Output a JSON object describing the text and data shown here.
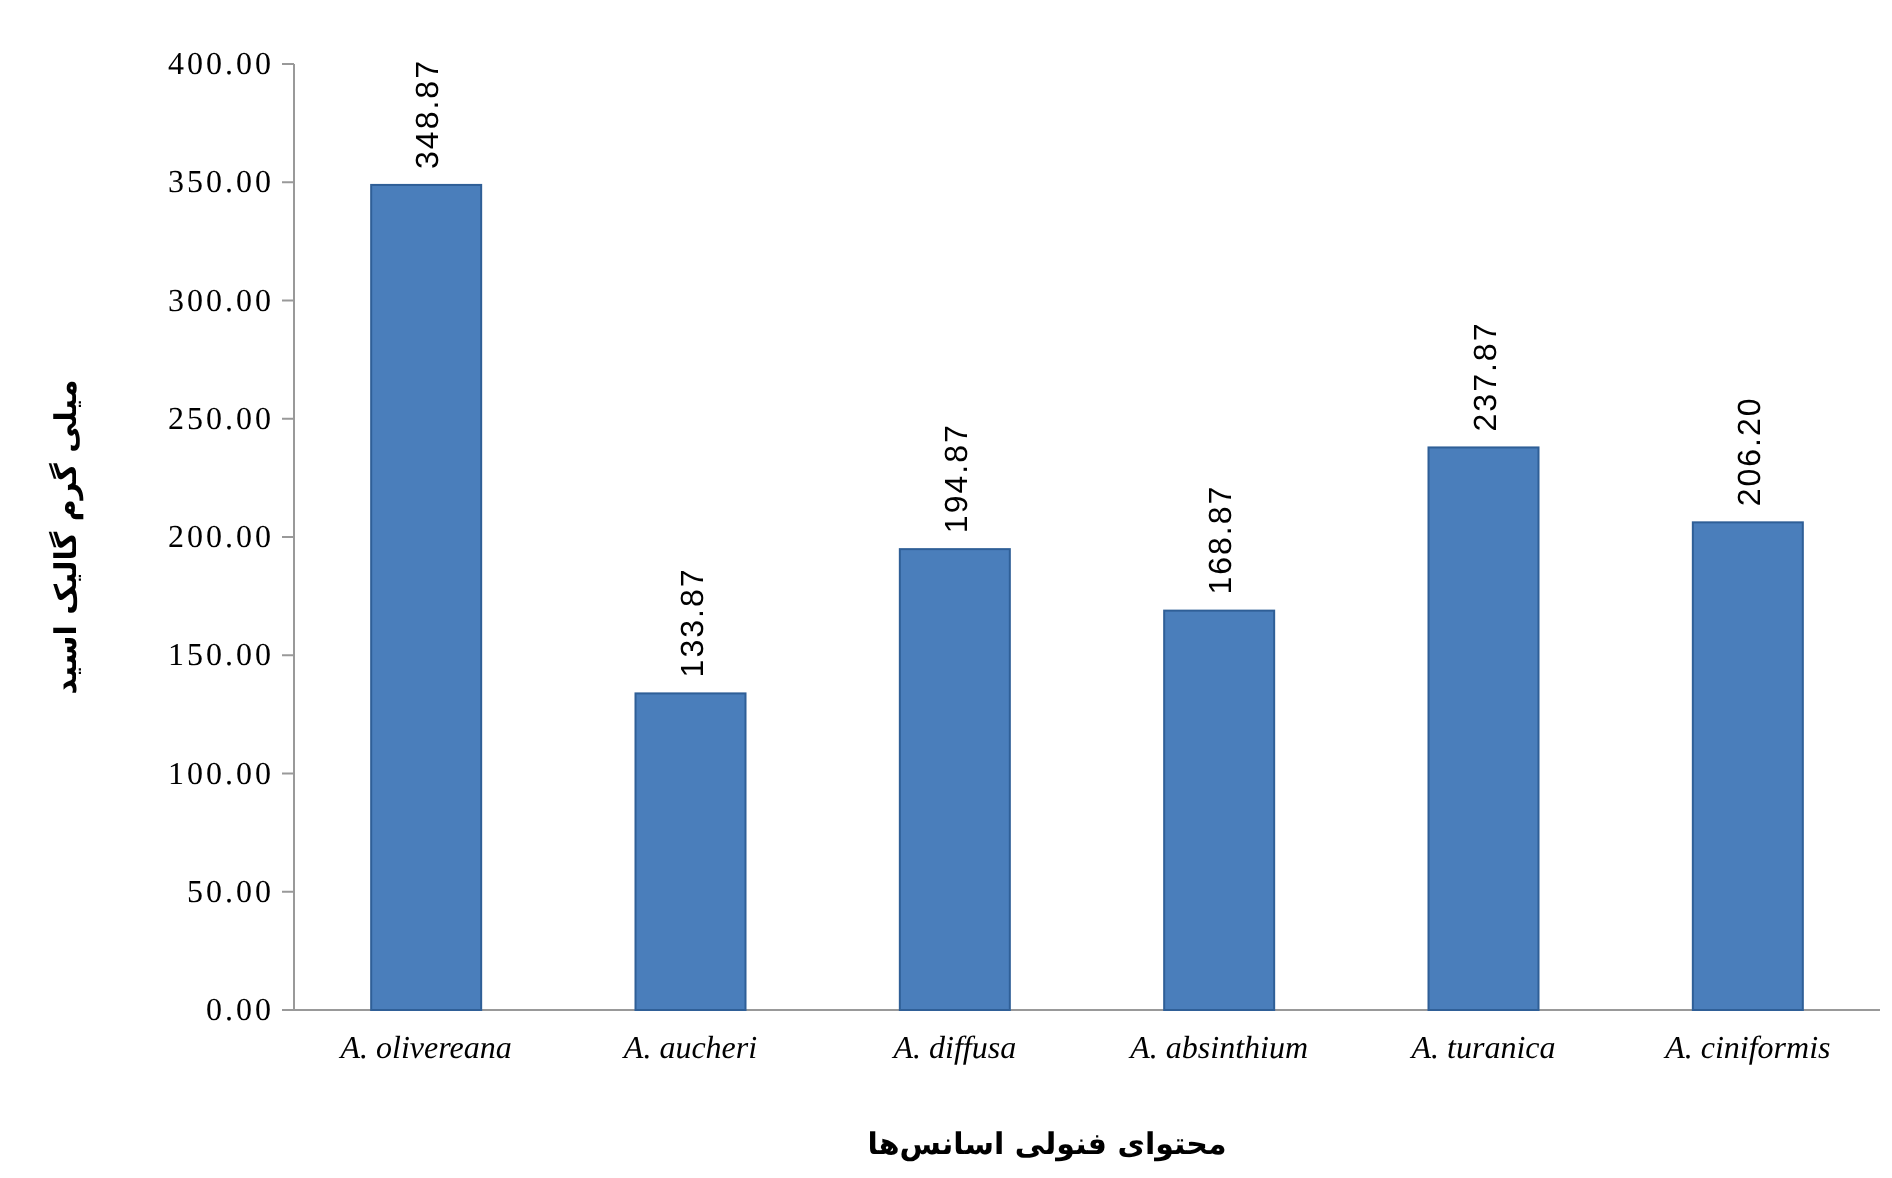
{
  "chart_data": {
    "type": "bar",
    "xlabel": "محتوای فنولی اسانس‌ها",
    "ylabel": "میلی گرم گالیک اسید",
    "categories": [
      "A. olivereana",
      "A. aucheri",
      "A. diffusa",
      "A. absinthium",
      "A. turanica",
      "A. ciniformis"
    ],
    "values": [
      348.87,
      133.87,
      194.87,
      168.87,
      237.87,
      206.2
    ],
    "value_labels": [
      "348.87",
      "133.87",
      "194.87",
      "168.87",
      "237.87",
      "206.20"
    ],
    "color": "#4a7ebb",
    "ylim": [
      0,
      400
    ],
    "yticks": [
      {
        "value": 0,
        "label": "0.00"
      },
      {
        "value": 50,
        "label": "50.00"
      },
      {
        "value": 100,
        "label": "100.00"
      },
      {
        "value": 150,
        "label": "150.00"
      },
      {
        "value": 200,
        "label": "200.00"
      },
      {
        "value": 250,
        "label": "250.00"
      },
      {
        "value": 300,
        "label": "300.00"
      },
      {
        "value": 350,
        "label": "350.00"
      },
      {
        "value": 400,
        "label": "400.00"
      }
    ]
  }
}
